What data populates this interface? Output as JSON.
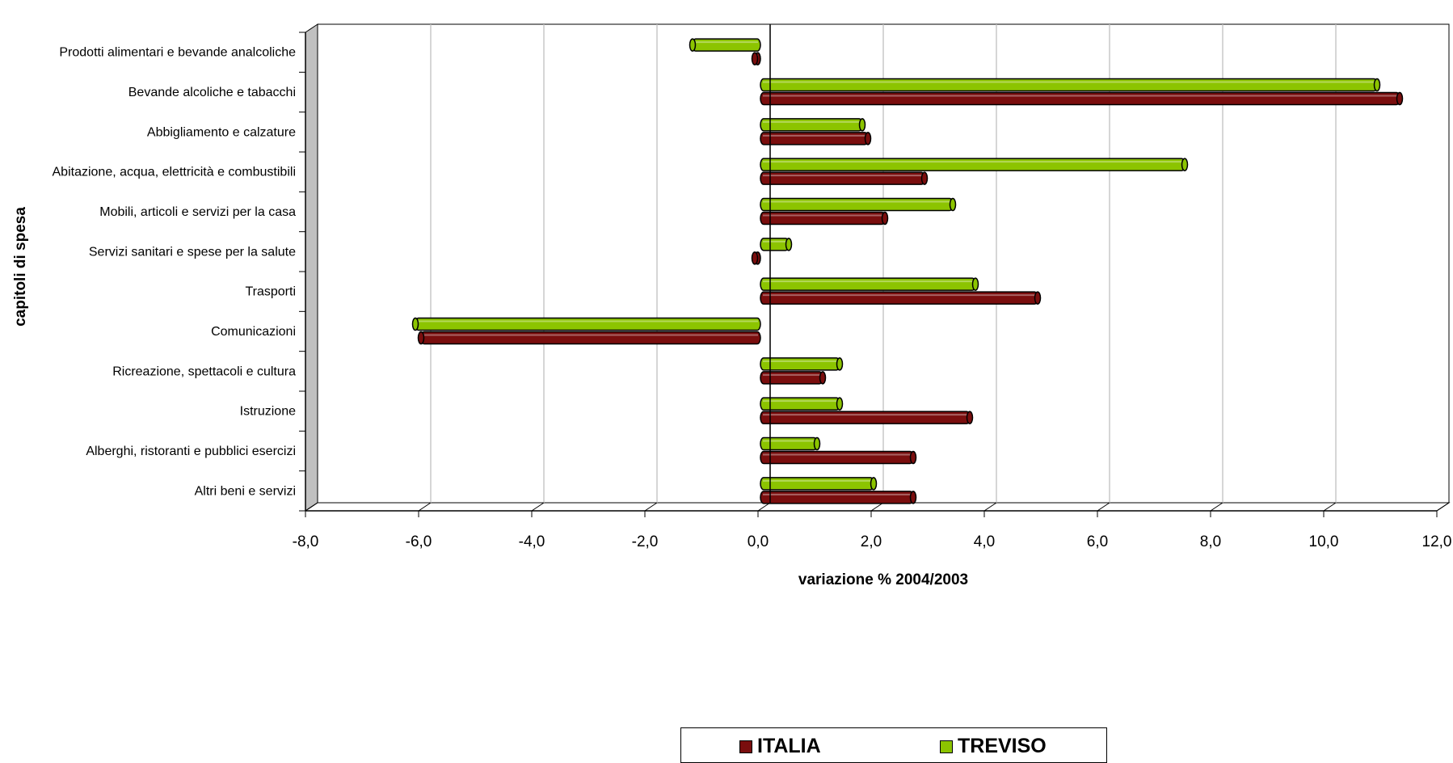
{
  "chart_data": {
    "type": "bar",
    "orientation": "horizontal",
    "categories": [
      "Prodotti alimentari e bevande analcoliche",
      "Bevande alcoliche e tabacchi",
      "Abbigliamento e calzature",
      "Abitazione, acqua, elettricità e combustibili",
      "Mobili, articoli e servizi per la casa",
      "Servizi sanitari e spese per la salute",
      "Trasporti",
      "Comunicazioni",
      "Ricreazione, spettacoli e cultura",
      "Istruzione",
      "Alberghi, ristoranti e pubblici esercizi",
      "Altri beni e servizi"
    ],
    "series": [
      {
        "name": "ITALIA",
        "color": "#7a0e0e",
        "values": [
          -0.1,
          11.3,
          1.9,
          2.9,
          2.2,
          -0.1,
          4.9,
          -6.0,
          1.1,
          3.7,
          2.7,
          2.7
        ]
      },
      {
        "name": "TREVISO",
        "color": "#8cc400",
        "values": [
          -1.2,
          10.9,
          1.8,
          7.5,
          3.4,
          0.5,
          3.8,
          -6.1,
          1.4,
          1.4,
          1.0,
          2.0
        ]
      }
    ],
    "xlabel": "variazione % 2004/2003",
    "ylabel": "capitoli di spesa",
    "xlim": [
      -8,
      12
    ],
    "xticks": [
      "-8,0",
      "-6,0",
      "-4,0",
      "-2,0",
      "0,0",
      "2,0",
      "4,0",
      "6,0",
      "8,0",
      "10,0",
      "12,0"
    ],
    "grid": true,
    "legend_position": "bottom"
  }
}
